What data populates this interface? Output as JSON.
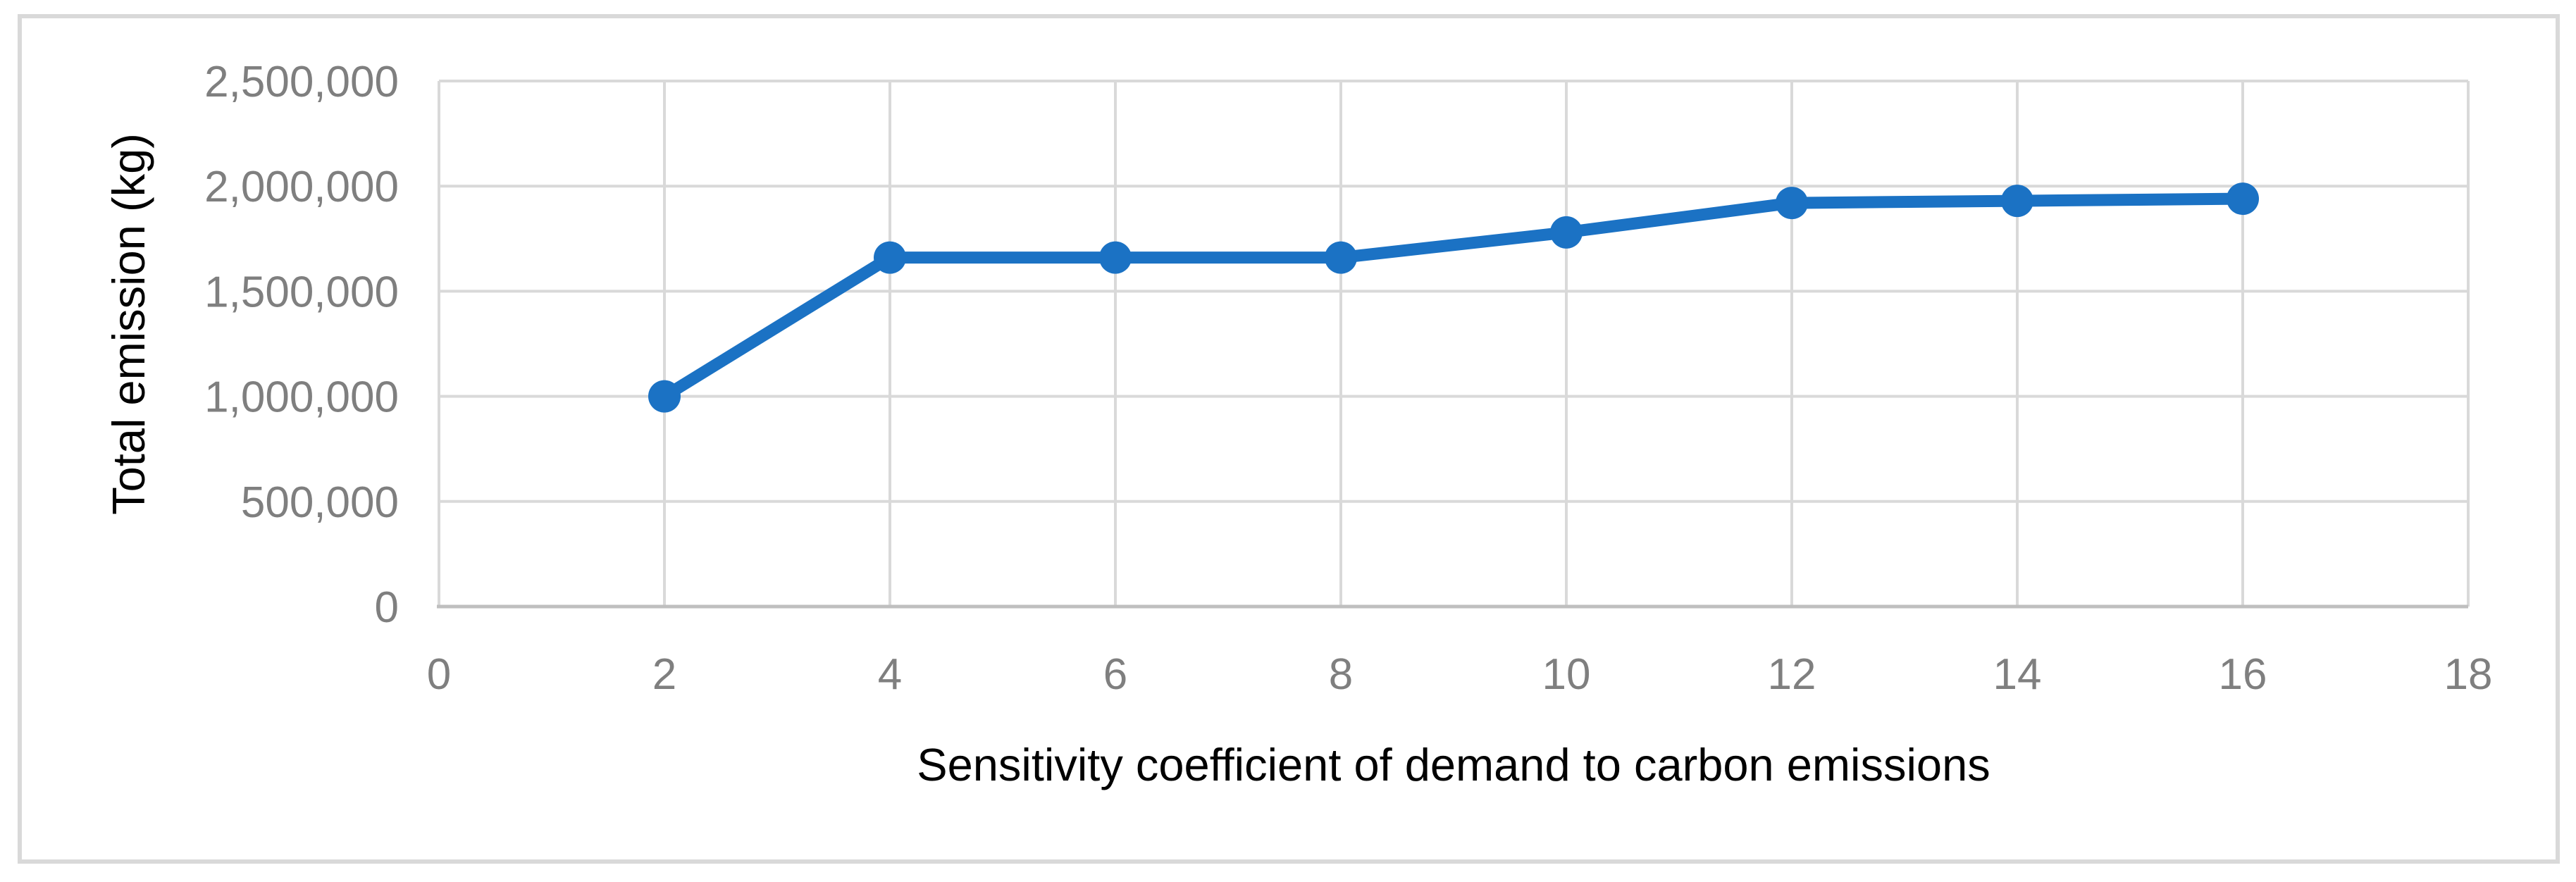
{
  "figure": {
    "background_color": "#FFFFFF",
    "border_color": "#D9D9D9"
  },
  "chart_data": {
    "type": "line",
    "title": "",
    "xlabel": "Sensitivity coefficient of demand to carbon emissions",
    "ylabel": "Total emission (kg)",
    "x": [
      2,
      4,
      6,
      8,
      10,
      12,
      14,
      16
    ],
    "series": [
      {
        "name": "Total emission",
        "values": [
          1000000,
          1660000,
          1660000,
          1660000,
          1780000,
          1920000,
          1930000,
          1940000
        ]
      }
    ],
    "xlim": [
      0,
      18
    ],
    "ylim": [
      0,
      2500000
    ],
    "x_tick_step": 2,
    "y_tick_step": 500000,
    "x_tick_labels": [
      "0",
      "2",
      "4",
      "6",
      "8",
      "10",
      "12",
      "14",
      "16",
      "18"
    ],
    "y_tick_labels": [
      "0",
      "500,000",
      "1,000,000",
      "1,500,000",
      "2,000,000",
      "2,500,000"
    ],
    "grid": true,
    "legend_position": "none",
    "line_color": "#1B72C4",
    "marker": "circle",
    "gridline_color": "#D9D9D9",
    "axis_line_color": "#BFBFBF",
    "tick_label_color": "#7F7F7F",
    "axis_title_color": "#000000"
  }
}
